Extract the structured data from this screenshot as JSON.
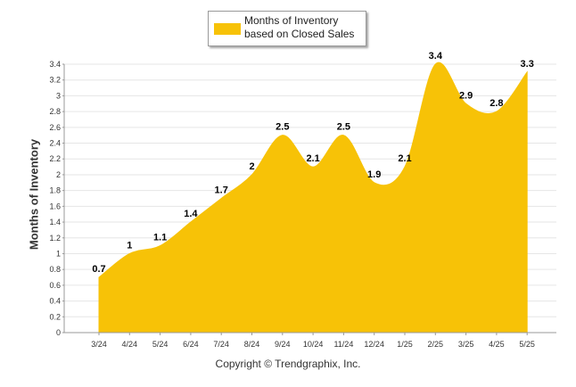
{
  "chart_data": {
    "type": "area",
    "ylabel": "Months of Inventory",
    "categories": [
      "3/24",
      "4/24",
      "5/24",
      "6/24",
      "7/24",
      "8/24",
      "9/24",
      "10/24",
      "11/24",
      "12/24",
      "1/25",
      "2/25",
      "3/25",
      "4/25",
      "5/25"
    ],
    "series": [
      {
        "name": "Months of Inventory based on Closed Sales",
        "values": [
          0.7,
          1,
          1.1,
          1.4,
          1.7,
          2,
          2.5,
          2.1,
          2.5,
          1.9,
          2.1,
          3.4,
          2.9,
          2.8,
          3.3
        ],
        "labels": [
          "0.7",
          "1",
          "1.1",
          "1.4",
          "1.7",
          "2",
          "2.5",
          "2.1",
          "2.5",
          "1.9",
          "2.1",
          "3.4",
          "2.9",
          "2.8",
          "3.3"
        ],
        "color": "#F7C207"
      }
    ],
    "ylim": [
      0,
      3.4
    ],
    "yticks": [
      "0",
      "0.2",
      "0.4",
      "0.6",
      "0.8",
      "1",
      "1.2",
      "1.4",
      "1.6",
      "1.8",
      "2",
      "2.2",
      "2.4",
      "2.6",
      "2.8",
      "3",
      "3.2",
      "3.4"
    ],
    "grid": true,
    "legend_position": "top-center"
  },
  "footer": {
    "copyright": "Copyright © Trendgraphix, Inc."
  }
}
